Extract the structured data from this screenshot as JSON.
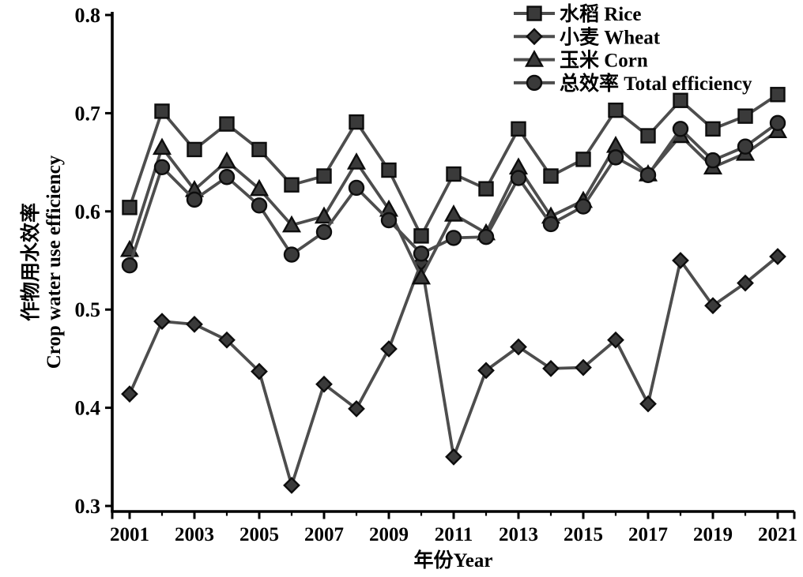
{
  "chart_data": {
    "type": "line",
    "title": "",
    "xlabel": "年份Year",
    "ylabel_zh": "作物用水效率",
    "ylabel_en": "Crop water use efficiency",
    "ylim": [
      0.3,
      0.8
    ],
    "yticks": [
      0.3,
      0.4,
      0.5,
      0.6,
      0.7,
      0.8
    ],
    "x": [
      2001,
      2002,
      2003,
      2004,
      2005,
      2006,
      2007,
      2008,
      2009,
      2010,
      2011,
      2012,
      2013,
      2014,
      2015,
      2016,
      2017,
      2018,
      2019,
      2020,
      2021
    ],
    "xtick_labels": [
      2001,
      2003,
      2005,
      2007,
      2009,
      2011,
      2013,
      2015,
      2017,
      2019,
      2021
    ],
    "grid": false,
    "legend_position": "top-right",
    "series": [
      {
        "key": "rice",
        "name": "水稻 Rice",
        "marker": "square",
        "values": [
          0.604,
          0.702,
          0.663,
          0.689,
          0.663,
          0.627,
          0.636,
          0.691,
          0.642,
          0.575,
          0.638,
          0.623,
          0.684,
          0.636,
          0.653,
          0.703,
          0.677,
          0.713,
          0.684,
          0.697,
          0.719
        ]
      },
      {
        "key": "wheat",
        "name": "小麦 Wheat",
        "marker": "diamond",
        "values": [
          0.414,
          0.488,
          0.485,
          0.469,
          0.437,
          0.321,
          0.424,
          0.399,
          0.46,
          0.548,
          0.35,
          0.438,
          0.462,
          0.44,
          0.441,
          0.469,
          0.404,
          0.55,
          0.504,
          0.527,
          0.554
        ]
      },
      {
        "key": "corn",
        "name": "玉米 Corn",
        "marker": "triangle",
        "values": [
          0.561,
          0.665,
          0.622,
          0.651,
          0.623,
          0.586,
          0.595,
          0.65,
          0.602,
          0.533,
          0.597,
          0.578,
          0.645,
          0.595,
          0.611,
          0.667,
          0.638,
          0.677,
          0.645,
          0.659,
          0.682
        ]
      },
      {
        "key": "total",
        "name": "总效率 Total efficiency",
        "marker": "circle",
        "values": [
          0.545,
          0.645,
          0.612,
          0.635,
          0.606,
          0.556,
          0.579,
          0.624,
          0.591,
          0.557,
          0.573,
          0.574,
          0.634,
          0.587,
          0.605,
          0.655,
          0.637,
          0.684,
          0.652,
          0.666,
          0.69
        ]
      }
    ]
  },
  "colors": {
    "line": "#4d4d4d",
    "marker_fill": "#3a3a3a",
    "marker_stroke": "#0d0d0d",
    "axis": "#000000",
    "text": "#000000",
    "background": "#ffffff"
  }
}
